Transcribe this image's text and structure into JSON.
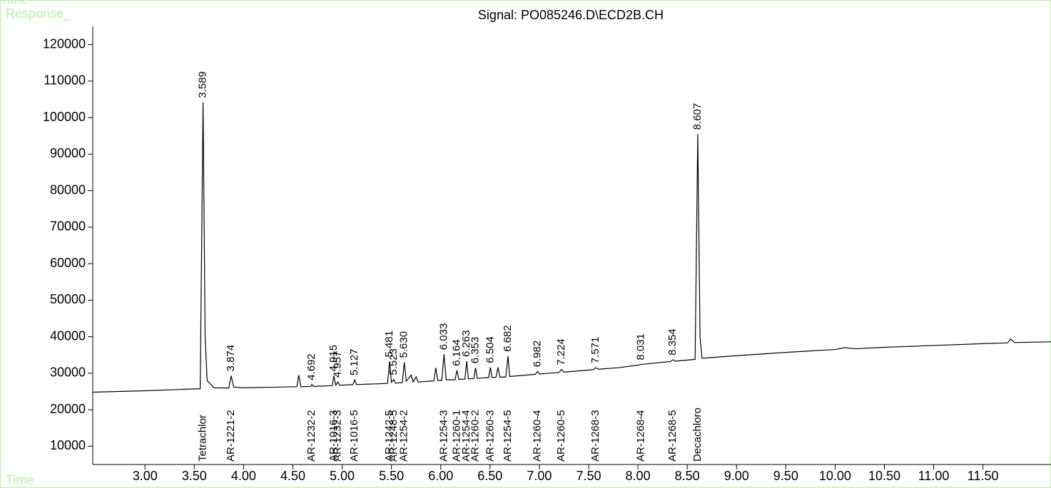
{
  "chart_data": {
    "type": "line",
    "title": "Signal: PO085246.D\\ECD2B.CH",
    "y_label": "Response_",
    "x_label": "Time",
    "color": "#000000",
    "xlim": [
      2.47,
      12.19
    ],
    "ylim": [
      5000,
      125000
    ],
    "xticks": [
      {
        "value": 3,
        "label": "3.00"
      },
      {
        "value": 3.5,
        "label": "3.50"
      },
      {
        "value": 4,
        "label": "4.00"
      },
      {
        "value": 4.5,
        "label": "4.50"
      },
      {
        "value": 5,
        "label": "5.00"
      },
      {
        "value": 5.5,
        "label": "5.50"
      },
      {
        "value": 6,
        "label": "6.00"
      },
      {
        "value": 6.5,
        "label": "6.50"
      },
      {
        "value": 7,
        "label": "7.00"
      },
      {
        "value": 7.5,
        "label": "7.50"
      },
      {
        "value": 8,
        "label": "8.00"
      },
      {
        "value": 8.5,
        "label": "8.50"
      },
      {
        "value": 9,
        "label": "9.00"
      },
      {
        "value": 9.5,
        "label": "9.50"
      },
      {
        "value": 10,
        "label": "10.00"
      },
      {
        "value": 10.5,
        "label": "10.50"
      },
      {
        "value": 11,
        "label": "11.00"
      },
      {
        "value": 11.5,
        "label": "11.50"
      }
    ],
    "yticks": [
      10000,
      20000,
      30000,
      40000,
      50000,
      60000,
      70000,
      80000,
      90000,
      100000,
      110000,
      120000
    ],
    "x": [
      2.47,
      3.0,
      3.5,
      3.56,
      3.589,
      3.61,
      3.63,
      3.7,
      3.85,
      3.874,
      3.9,
      4.0,
      4.54,
      4.56,
      4.58,
      4.68,
      4.692,
      4.71,
      4.9,
      4.915,
      4.935,
      4.957,
      4.975,
      5.11,
      5.127,
      5.145,
      5.46,
      5.481,
      5.5,
      5.523,
      5.54,
      5.61,
      5.63,
      5.65,
      5.7,
      5.72,
      5.75,
      5.77,
      5.93,
      5.95,
      5.97,
      6.01,
      6.033,
      6.055,
      6.145,
      6.164,
      6.185,
      6.245,
      6.263,
      6.28,
      6.335,
      6.353,
      6.37,
      6.485,
      6.504,
      6.52,
      6.56,
      6.58,
      6.6,
      6.66,
      6.682,
      6.7,
      6.96,
      6.982,
      7.0,
      7.2,
      7.224,
      7.25,
      7.55,
      7.571,
      7.6,
      7.8,
      8.0,
      8.031,
      8.33,
      8.354,
      8.38,
      8.58,
      8.607,
      8.63,
      8.65,
      8.7,
      9.0,
      9.5,
      10.0,
      10.1,
      10.2,
      10.5,
      11.0,
      11.5,
      11.75,
      11.78,
      11.82,
      12.19
    ],
    "values": [
      24800,
      25200,
      25700,
      25750,
      104200,
      40000,
      28000,
      26000,
      25950,
      29300,
      26200,
      26000,
      26300,
      29500,
      26300,
      26400,
      26900,
      26400,
      26600,
      29300,
      26700,
      27600,
      26700,
      26900,
      28200,
      26900,
      27200,
      33200,
      27500,
      28300,
      27300,
      27400,
      33000,
      27800,
      29500,
      27600,
      29000,
      27600,
      27900,
      31500,
      28000,
      28000,
      35200,
      28200,
      28200,
      30800,
      28300,
      28400,
      33300,
      28500,
      28500,
      31500,
      28600,
      28800,
      31600,
      28800,
      28900,
      31600,
      28900,
      29000,
      34700,
      29100,
      29700,
      30500,
      29800,
      30200,
      31000,
      30300,
      31000,
      31500,
      31100,
      31500,
      32200,
      32400,
      33200,
      33700,
      33300,
      33800,
      95500,
      40000,
      34100,
      34200,
      34800,
      35700,
      36500,
      37000,
      36700,
      37100,
      37600,
      38100,
      38300,
      39400,
      38400,
      38600
    ],
    "peak_labels": [
      3.589,
      3.874,
      4.692,
      4.915,
      4.957,
      5.127,
      5.481,
      5.523,
      5.63,
      6.033,
      6.164,
      6.263,
      6.353,
      6.504,
      6.682,
      6.982,
      7.224,
      7.571,
      8.031,
      8.354,
      8.607
    ],
    "peak_value_labels": [
      "3.589",
      "3.874",
      "4.692",
      "4.915",
      "4.957",
      "5.127",
      "5.481",
      "5.523",
      "5.630",
      "6.033",
      "6.164",
      "6.263",
      "6.353",
      "6.504",
      "6.682",
      "6.982",
      "7.224",
      "7.571",
      "8.031",
      "8.354",
      "8.607"
    ],
    "peak_names": [
      "Tetrachlor",
      "AR-1221-2",
      "AR-1232-2",
      "AR-1016-3",
      "AR-1232-3",
      "AR-1016-5",
      "AR-1242-5",
      "AR-1248-5",
      "AR-1254-2",
      "AR-1254-3",
      "AR-1260-1",
      "AR-1254-4",
      "AR-1260-2",
      "AR-1260-3",
      "AR-1254-5",
      "AR-1260-4",
      "AR-1260-5",
      "AR-1268-3",
      "AR-1268-4",
      "AR-1268-5",
      "Decachloro"
    ]
  }
}
